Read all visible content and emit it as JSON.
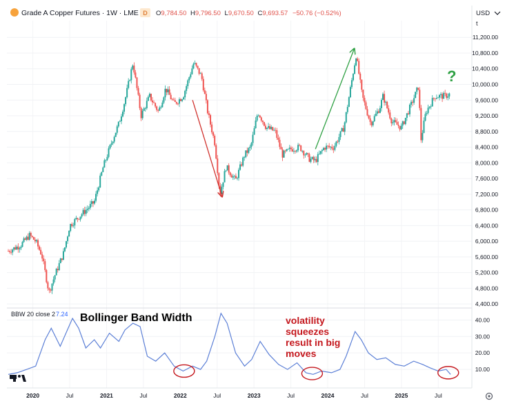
{
  "header": {
    "title": "Grade A Copper Futures · 1W · LME",
    "ohlc": {
      "o_label": "O",
      "o": "9,784.50",
      "h_label": "H",
      "h": "9,796.50",
      "l_label": "L",
      "l": "9,670.50",
      "c_label": "C",
      "c": "9,693.57",
      "chg": "−50.76 (−0.52%)"
    },
    "currency": "USD",
    "price_axis_hint": "t",
    "colors": {
      "down": "#e0524b",
      "up": "#2ea043",
      "badge": "#f7a23b",
      "ohlc_text": "#e0524b"
    }
  },
  "annotations": {
    "question": "?",
    "bbw_title": "Bollinger Band Width",
    "note_lines": [
      "volatility",
      "squeezes",
      "result in big",
      "moves"
    ],
    "note_color": "#c4161c"
  },
  "indicator": {
    "label": "BBW 20 close 2",
    "value": "7.24",
    "value_color": "#2962ff"
  },
  "logo": "TV",
  "chart_data": [
    {
      "type": "candlestick",
      "title": "Grade A Copper Futures · 1W · LME",
      "x_ticks": [
        "2020",
        "Jul",
        "2021",
        "Jul",
        "2022",
        "Jul",
        "2023",
        "Jul",
        "2024",
        "Jul",
        "2025",
        "Jul"
      ],
      "y_ticks": [
        "11,200.00",
        "10,800.00",
        "10,400.00",
        "10,000.00",
        "9,600.00",
        "9,200.00",
        "8,800.00",
        "8,400.00",
        "8,000.00",
        "7,600.00",
        "7,200.00",
        "6,800.00",
        "6,400.00",
        "6,000.00",
        "5,600.00",
        "5,200.00",
        "4,800.00",
        "4,400.00"
      ],
      "ylim": [
        4350,
        11450
      ],
      "x_range": [
        "2019-09",
        "2025-10"
      ],
      "close_series": [
        [
          "2019-09-01",
          5750
        ],
        [
          "2019-11-01",
          5900
        ],
        [
          "2019-12-15",
          6150
        ],
        [
          "2020-01-15",
          6000
        ],
        [
          "2020-02-15",
          5650
        ],
        [
          "2020-03-20",
          4700
        ],
        [
          "2020-04-20",
          5150
        ],
        [
          "2020-06-01",
          5700
        ],
        [
          "2020-07-01",
          6400
        ],
        [
          "2020-09-01",
          6700
        ],
        [
          "2020-11-01",
          7000
        ],
        [
          "2020-12-15",
          7900
        ],
        [
          "2021-02-01",
          8600
        ],
        [
          "2021-03-01",
          9000
        ],
        [
          "2021-04-01",
          9600
        ],
        [
          "2021-05-10",
          10550
        ],
        [
          "2021-06-20",
          9200
        ],
        [
          "2021-08-01",
          9700
        ],
        [
          "2021-09-15",
          9300
        ],
        [
          "2021-10-20",
          9900
        ],
        [
          "2021-12-01",
          9500
        ],
        [
          "2022-01-15",
          9700
        ],
        [
          "2022-03-07",
          10550
        ],
        [
          "2022-04-15",
          10200
        ],
        [
          "2022-05-15",
          9300
        ],
        [
          "2022-06-20",
          8500
        ],
        [
          "2022-07-15",
          7200
        ],
        [
          "2022-08-15",
          7900
        ],
        [
          "2022-10-01",
          7550
        ],
        [
          "2022-11-15",
          8200
        ],
        [
          "2022-12-15",
          8400
        ],
        [
          "2023-01-20",
          9300
        ],
        [
          "2023-03-01",
          8900
        ],
        [
          "2023-04-15",
          8800
        ],
        [
          "2023-05-20",
          8200
        ],
        [
          "2023-07-01",
          8350
        ],
        [
          "2023-08-15",
          8400
        ],
        [
          "2023-10-01",
          8100
        ],
        [
          "2023-11-01",
          8050
        ],
        [
          "2023-12-15",
          8400
        ],
        [
          "2024-02-01",
          8400
        ],
        [
          "2024-03-20",
          8900
        ],
        [
          "2024-05-20",
          10750
        ],
        [
          "2024-06-20",
          9700
        ],
        [
          "2024-08-01",
          9000
        ],
        [
          "2024-09-15",
          9400
        ],
        [
          "2024-10-01",
          9700
        ],
        [
          "2024-11-15",
          9050
        ],
        [
          "2025-01-01",
          8900
        ],
        [
          "2025-02-20",
          9500
        ],
        [
          "2025-03-25",
          9950
        ],
        [
          "2025-04-07",
          8600
        ],
        [
          "2025-05-01",
          9300
        ],
        [
          "2025-06-15",
          9700
        ],
        [
          "2025-08-01",
          9700
        ],
        [
          "2025-09-01",
          9760
        ]
      ],
      "arrows": [
        {
          "from": [
            "2022-03-01",
            9600
          ],
          "to": [
            "2022-07-25",
            7150
          ],
          "color": "#d0312d"
        },
        {
          "from": [
            "2023-11-01",
            8350
          ],
          "to": [
            "2024-05-10",
            10900
          ],
          "color": "#2ea043"
        }
      ],
      "colors": {
        "up": "#26a69a",
        "down": "#ef5350"
      },
      "grid": true
    },
    {
      "type": "line",
      "title": "BBW 20 close 2",
      "y_ticks": [
        "40.00",
        "30.00",
        "20.00",
        "10.00"
      ],
      "ylim": [
        0,
        46
      ],
      "x_range": [
        "2019-09",
        "2025-10"
      ],
      "series": [
        {
          "name": "BBW 20 close 2",
          "color": "#5b7fd6",
          "points": [
            [
              "2019-09-01",
              7
            ],
            [
              "2019-10-15",
              8
            ],
            [
              "2019-12-01",
              10
            ],
            [
              "2020-01-15",
              12
            ],
            [
              "2020-03-01",
              28
            ],
            [
              "2020-04-01",
              35
            ],
            [
              "2020-05-15",
              24
            ],
            [
              "2020-06-20",
              34
            ],
            [
              "2020-07-15",
              41
            ],
            [
              "2020-08-15",
              35
            ],
            [
              "2020-09-20",
              23
            ],
            [
              "2020-11-01",
              28
            ],
            [
              "2020-12-01",
              23
            ],
            [
              "2021-01-15",
              32
            ],
            [
              "2021-03-01",
              27
            ],
            [
              "2021-04-01",
              34
            ],
            [
              "2021-05-10",
              38
            ],
            [
              "2021-06-15",
              36
            ],
            [
              "2021-07-20",
              18
            ],
            [
              "2021-09-01",
              15
            ],
            [
              "2021-10-15",
              20
            ],
            [
              "2021-12-01",
              12
            ],
            [
              "2022-01-15",
              9
            ],
            [
              "2022-03-01",
              12
            ],
            [
              "2022-04-10",
              10
            ],
            [
              "2022-05-10",
              15
            ],
            [
              "2022-06-20",
              30
            ],
            [
              "2022-07-20",
              44
            ],
            [
              "2022-08-20",
              38
            ],
            [
              "2022-10-01",
              20
            ],
            [
              "2022-11-15",
              12
            ],
            [
              "2022-12-20",
              16
            ],
            [
              "2023-02-01",
              27
            ],
            [
              "2023-03-15",
              19
            ],
            [
              "2023-05-01",
              13
            ],
            [
              "2023-06-15",
              10
            ],
            [
              "2023-08-01",
              14
            ],
            [
              "2023-09-15",
              8
            ],
            [
              "2023-10-20",
              7
            ],
            [
              "2023-12-01",
              9
            ],
            [
              "2024-01-20",
              8
            ],
            [
              "2024-03-01",
              10
            ],
            [
              "2024-04-01",
              18
            ],
            [
              "2024-05-15",
              33
            ],
            [
              "2024-06-15",
              28
            ],
            [
              "2024-07-20",
              20
            ],
            [
              "2024-09-01",
              16
            ],
            [
              "2024-10-15",
              17
            ],
            [
              "2024-12-01",
              13
            ],
            [
              "2025-01-15",
              12
            ],
            [
              "2025-03-01",
              15
            ],
            [
              "2025-04-15",
              13
            ],
            [
              "2025-05-20",
              11
            ],
            [
              "2025-07-01",
              9
            ],
            [
              "2025-08-10",
              10
            ],
            [
              "2025-09-01",
              7
            ]
          ]
        }
      ],
      "squeeze_circles": [
        [
          "2022-01-20",
          9
        ],
        [
          "2023-10-15",
          7.5
        ],
        [
          "2025-08-20",
          8
        ]
      ]
    }
  ]
}
